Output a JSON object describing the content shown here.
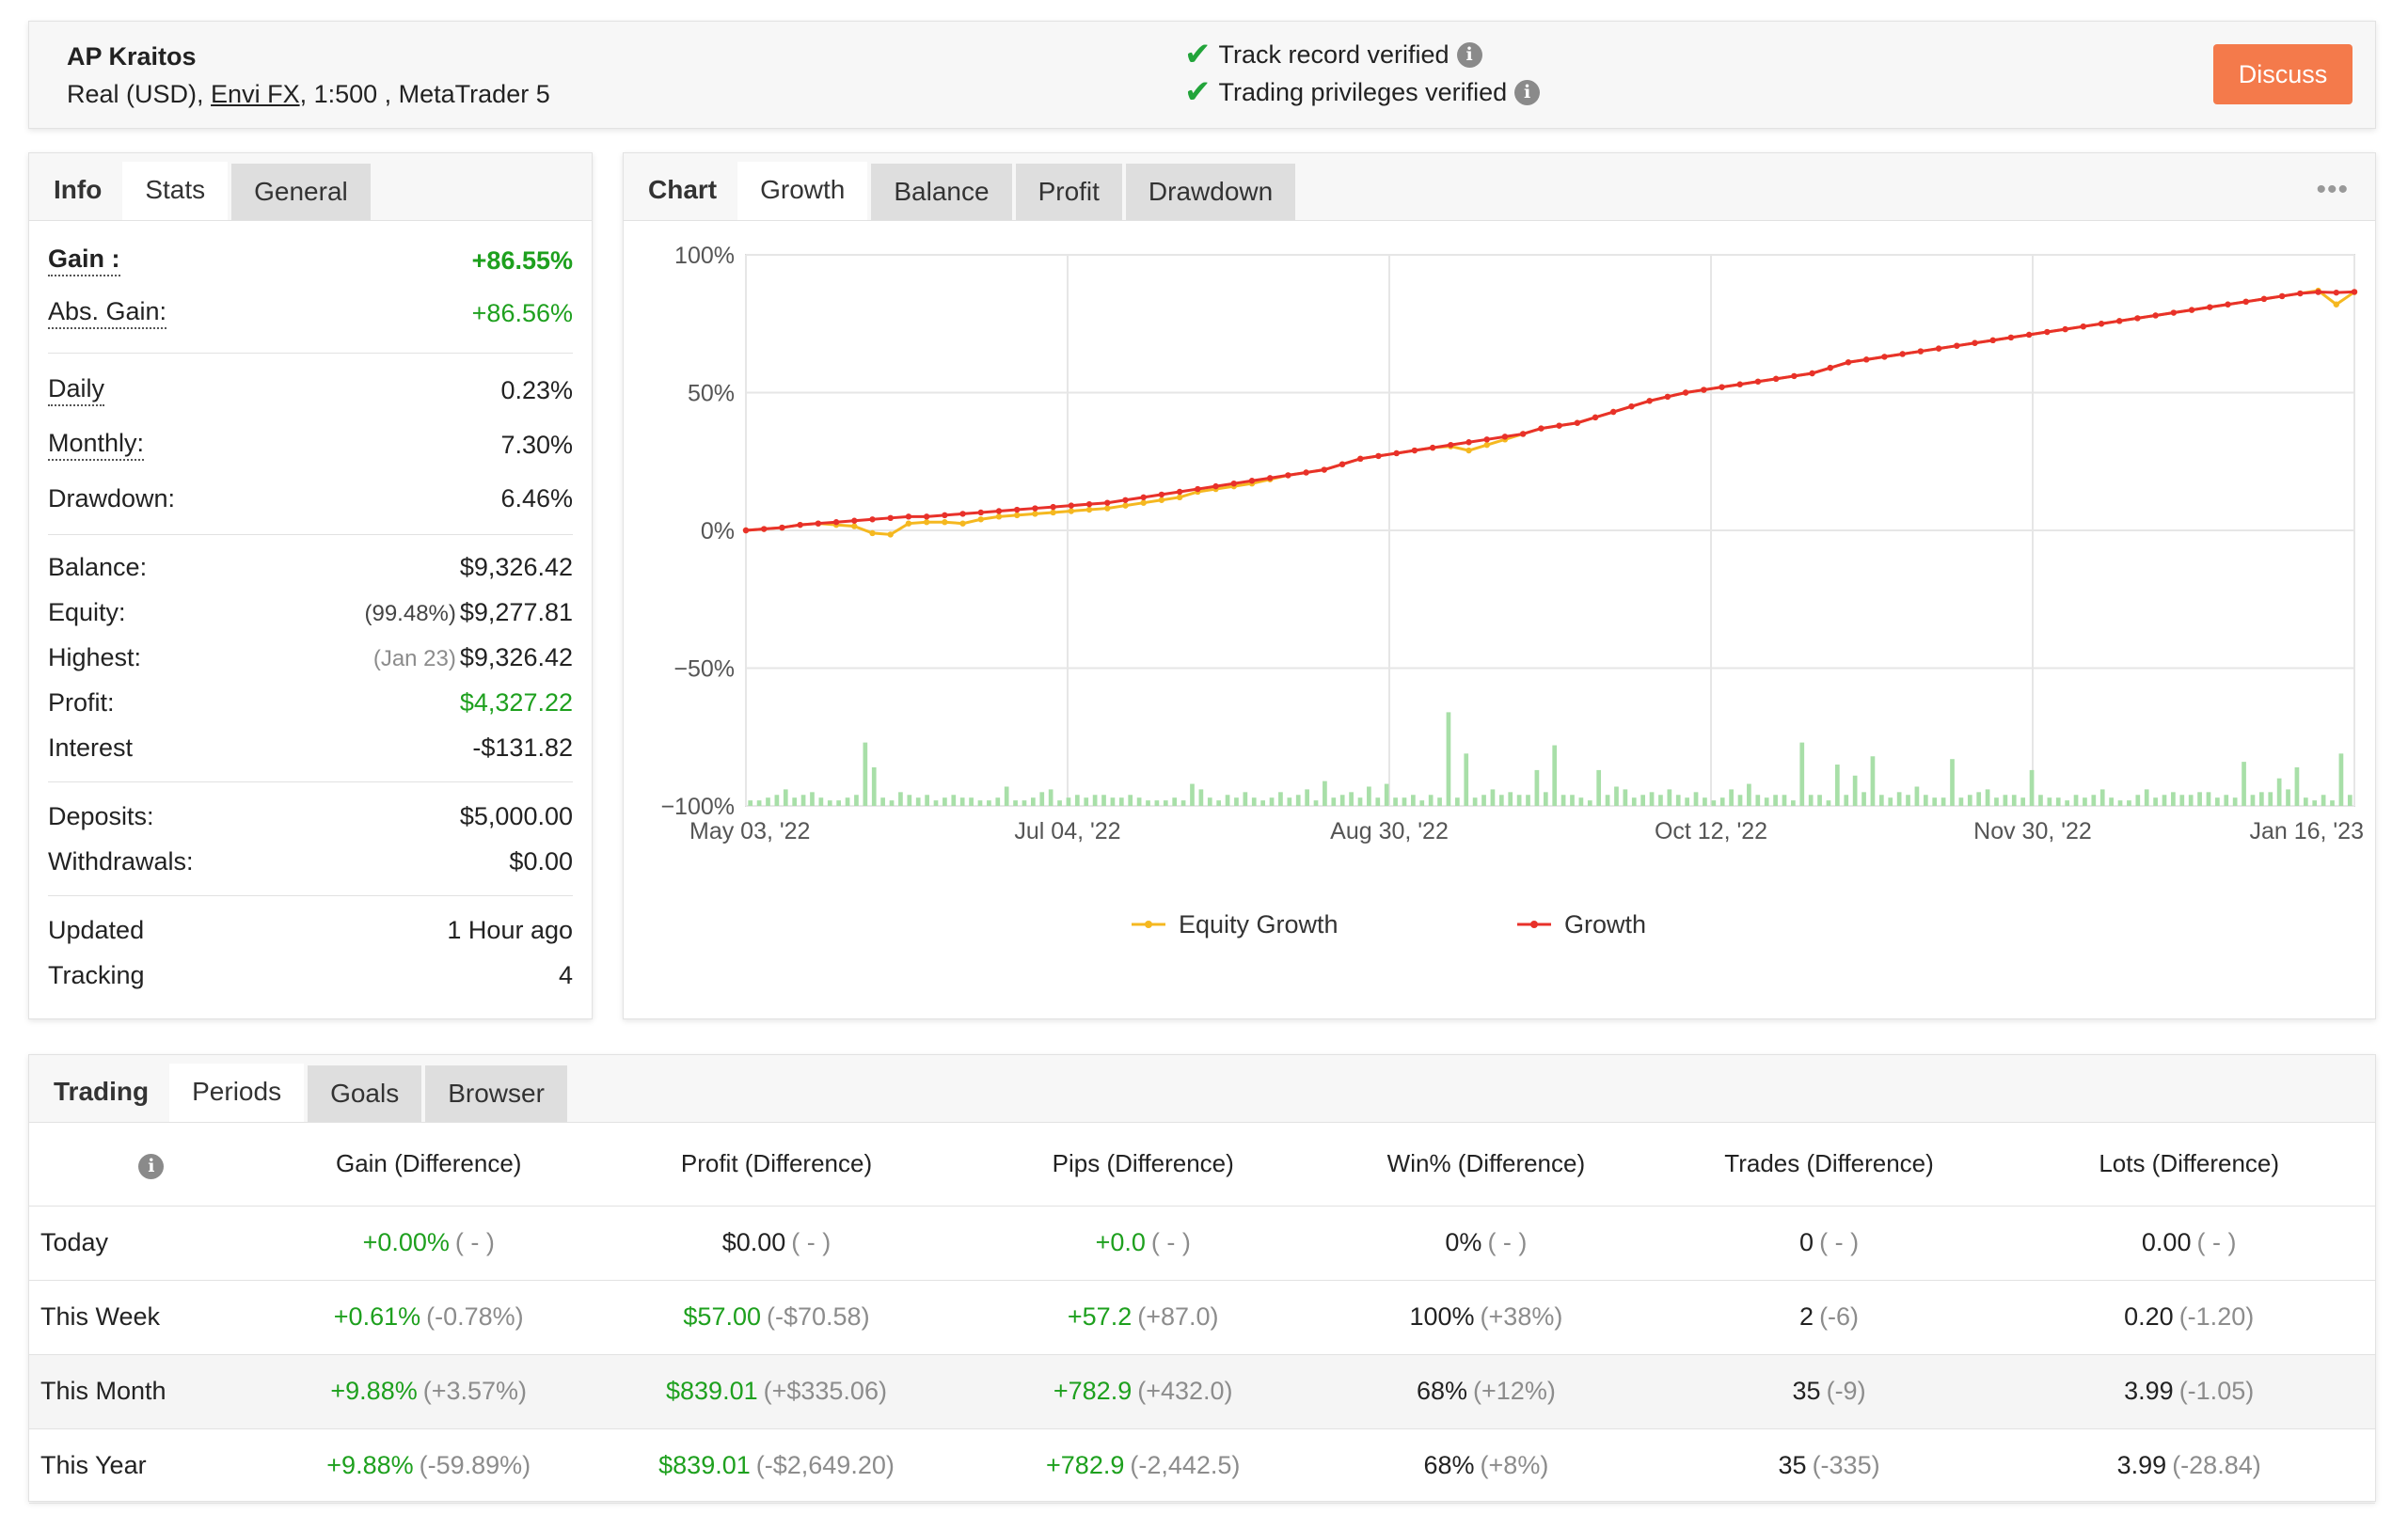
{
  "header": {
    "account_name": "AP Kraitos",
    "account_type": "Real (USD),",
    "broker": "Envi FX",
    "leverage_platform": ", 1:500 , MetaTrader 5",
    "verify_1": "Track record verified",
    "verify_2": "Trading privileges verified",
    "discuss_label": "Discuss",
    "info_icon": "i"
  },
  "info_tabs": {
    "title": "Info",
    "tabs": [
      "Stats",
      "General"
    ],
    "active": "Stats"
  },
  "stats": {
    "gain_label": "Gain :",
    "gain": "+86.55%",
    "abs_gain_label": "Abs. Gain:",
    "abs_gain": "+86.56%",
    "daily_label": "Daily",
    "daily": "0.23%",
    "monthly_label": "Monthly:",
    "monthly": "7.30%",
    "drawdown_label": "Drawdown:",
    "drawdown": "6.46%",
    "balance_label": "Balance:",
    "balance": "$9,326.42",
    "equity_label": "Equity:",
    "equity_pct": "(99.48%)",
    "equity": "$9,277.81",
    "highest_label": "Highest:",
    "highest_date": "(Jan 23)",
    "highest": "$9,326.42",
    "profit_label": "Profit:",
    "profit": "$4,327.22",
    "interest_label": "Interest",
    "interest": "-$131.82",
    "deposits_label": "Deposits:",
    "deposits": "$5,000.00",
    "withdrawals_label": "Withdrawals:",
    "withdrawals": "$0.00",
    "updated_label": "Updated",
    "updated": "1 Hour ago",
    "tracking_label": "Tracking",
    "tracking": "4"
  },
  "chart_tabs": {
    "title": "Chart",
    "tabs": [
      "Growth",
      "Balance",
      "Profit",
      "Drawdown"
    ],
    "active": "Growth",
    "more_icon": "•••"
  },
  "chart_data": {
    "type": "line",
    "x_tick_labels": [
      "May 03, '22",
      "Jul 04, '22",
      "Aug 30, '22",
      "Oct 12, '22",
      "Nov 30, '22",
      "Jan 16, '23"
    ],
    "y_tick_labels": [
      "100%",
      "50%",
      "0%",
      "−50%",
      "−100%"
    ],
    "ylim": [
      -100,
      100
    ],
    "grid": true,
    "legend_position": "bottom",
    "series": [
      {
        "name": "Equity Growth",
        "color": "#f5b820",
        "values": [
          0.0,
          0.5,
          1.0,
          2.0,
          2.5,
          2.0,
          1.5,
          -1.0,
          -1.5,
          2.5,
          3.0,
          3.0,
          2.5,
          4.0,
          5.0,
          5.5,
          6.0,
          6.5,
          7.0,
          7.5,
          8.0,
          9.0,
          10.0,
          11.0,
          12.0,
          14.0,
          15.0,
          16.0,
          17.0,
          18.5,
          20.0,
          21.0,
          22.0,
          24.0,
          26.0,
          27.0,
          28.0,
          29.0,
          30.0,
          30.5,
          29.0,
          31.0,
          33.0,
          35.0,
          37.0,
          38.0,
          39.0,
          41.0,
          43.0,
          45.0,
          47.0,
          48.5,
          50.0,
          51.0,
          52.0,
          53.0,
          54.0,
          55.0,
          56.0,
          57.0,
          59.0,
          61.0,
          62.0,
          63.0,
          64.0,
          65.0,
          66.0,
          67.0,
          68.0,
          69.0,
          70.0,
          71.0,
          72.0,
          73.0,
          74.0,
          75.0,
          76.0,
          77.0,
          78.0,
          79.0,
          80.0,
          81.0,
          82.0,
          83.0,
          84.0,
          85.0,
          86.0,
          87.0,
          82.0,
          86.5
        ]
      },
      {
        "name": "Growth",
        "color": "#e8312a",
        "values": [
          0.0,
          0.5,
          1.0,
          2.0,
          2.5,
          3.0,
          3.5,
          4.0,
          4.5,
          5.0,
          5.0,
          5.5,
          6.0,
          6.5,
          7.0,
          7.5,
          8.0,
          8.5,
          9.0,
          9.5,
          10.0,
          11.0,
          12.0,
          13.0,
          14.0,
          15.0,
          16.0,
          17.0,
          18.0,
          19.0,
          20.0,
          21.0,
          22.0,
          24.0,
          26.0,
          27.0,
          28.0,
          29.0,
          30.0,
          31.0,
          32.0,
          33.0,
          34.0,
          35.0,
          37.0,
          38.0,
          39.0,
          41.0,
          43.0,
          45.0,
          47.0,
          48.5,
          50.0,
          51.0,
          52.0,
          53.0,
          54.0,
          55.0,
          56.0,
          57.0,
          59.0,
          61.0,
          62.0,
          63.0,
          64.0,
          65.0,
          66.0,
          67.0,
          68.0,
          69.0,
          70.0,
          71.0,
          72.0,
          73.0,
          74.0,
          75.0,
          76.0,
          77.0,
          78.0,
          79.0,
          80.0,
          81.0,
          82.0,
          83.0,
          84.0,
          85.0,
          86.0,
          86.5,
          86.3,
          86.55
        ]
      }
    ],
    "bars": {
      "color": "#a8dfa8",
      "values": [
        2,
        2,
        3,
        4,
        6,
        3,
        4,
        5,
        3,
        2,
        2,
        3,
        4,
        23,
        14,
        3,
        2,
        5,
        4,
        3,
        4,
        2,
        3,
        4,
        3,
        3,
        2,
        2,
        3,
        7,
        2,
        2,
        3,
        5,
        6,
        2,
        3,
        4,
        3,
        4,
        4,
        3,
        3,
        4,
        3,
        2,
        2,
        2,
        3,
        2,
        8,
        6,
        3,
        2,
        4,
        3,
        5,
        3,
        2,
        3,
        5,
        3,
        4,
        6,
        2,
        9,
        3,
        4,
        5,
        3,
        7,
        3,
        8,
        3,
        3,
        4,
        2,
        4,
        3,
        34,
        3,
        19,
        3,
        4,
        6,
        4,
        5,
        4,
        4,
        13,
        5,
        22,
        4,
        4,
        3,
        2,
        13,
        4,
        7,
        6,
        3,
        4,
        5,
        4,
        6,
        4,
        3,
        5,
        3,
        2,
        3,
        6,
        4,
        8,
        4,
        3,
        4,
        4,
        2,
        23,
        4,
        4,
        2,
        15,
        4,
        11,
        5,
        18,
        4,
        3,
        5,
        4,
        7,
        4,
        3,
        3,
        17,
        3,
        4,
        5,
        6,
        3,
        4,
        4,
        3,
        13,
        4,
        3,
        3,
        2,
        4,
        3,
        4,
        6,
        3,
        2,
        2,
        4,
        6,
        3,
        4,
        5,
        4,
        4,
        5,
        5,
        3,
        4,
        3,
        16,
        4,
        5,
        5,
        10,
        6,
        14,
        3,
        2,
        4,
        2,
        19,
        4
      ]
    }
  },
  "trading_tabs": {
    "title": "Trading",
    "tabs": [
      "Periods",
      "Goals",
      "Browser"
    ],
    "active": "Periods"
  },
  "periods": {
    "columns": [
      "Gain (Difference)",
      "Profit (Difference)",
      "Pips (Difference)",
      "Win% (Difference)",
      "Trades (Difference)",
      "Lots (Difference)"
    ],
    "rows": [
      {
        "period": "Today",
        "gain": "+0.00%",
        "gain_diff": "( - )",
        "profit": "$0.00",
        "profit_diff": "( - )",
        "pips": "+0.0",
        "pips_diff": "( - )",
        "win": "0%",
        "win_diff": "( - )",
        "trades": "0",
        "trades_diff": "( - )",
        "lots": "0.00",
        "lots_diff": "( - )"
      },
      {
        "period": "This Week",
        "gain": "+0.61%",
        "gain_diff": "(-0.78%)",
        "profit": "$57.00",
        "profit_diff": "(-$70.58)",
        "pips": "+57.2",
        "pips_diff": "(+87.0)",
        "win": "100%",
        "win_diff": "(+38%)",
        "trades": "2",
        "trades_diff": "(-6)",
        "lots": "0.20",
        "lots_diff": "(-1.20)"
      },
      {
        "period": "This Month",
        "gain": "+9.88%",
        "gain_diff": "(+3.57%)",
        "profit": "$839.01",
        "profit_diff": "(+$335.06)",
        "pips": "+782.9",
        "pips_diff": "(+432.0)",
        "win": "68%",
        "win_diff": "(+12%)",
        "trades": "35",
        "trades_diff": "(-9)",
        "lots": "3.99",
        "lots_diff": "(-1.05)"
      },
      {
        "period": "This Year",
        "gain": "+9.88%",
        "gain_diff": "(-59.89%)",
        "profit": "$839.01",
        "profit_diff": "(-$2,649.20)",
        "pips": "+782.9",
        "pips_diff": "(-2,442.5)",
        "win": "68%",
        "win_diff": "(+8%)",
        "trades": "35",
        "trades_diff": "(-335)",
        "lots": "3.99",
        "lots_diff": "(-28.84)"
      }
    ]
  },
  "colors": {
    "accent": "#f47a4b",
    "positive": "#1ea01e",
    "verified": "#22a43a"
  }
}
